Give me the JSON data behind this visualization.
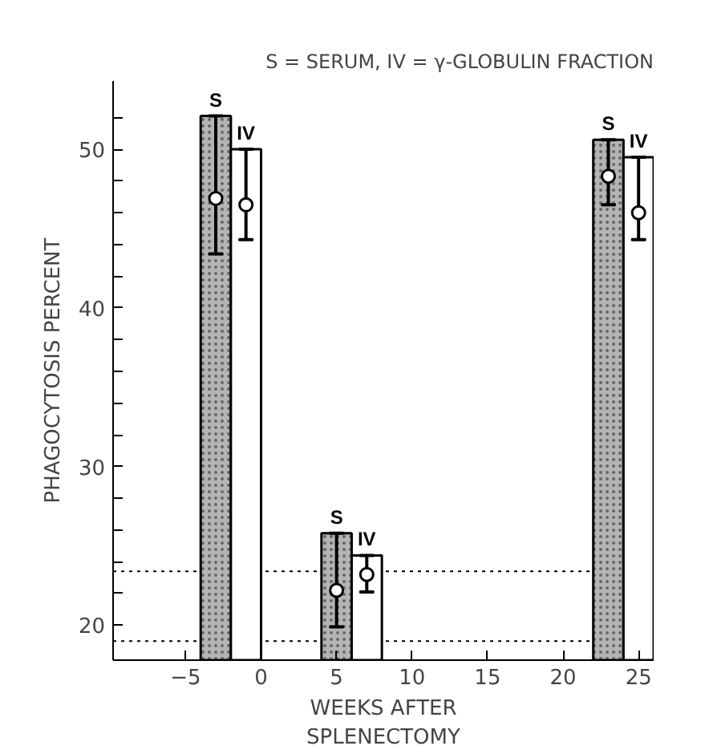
{
  "chart_data": {
    "type": "bar",
    "title": "S = SERUM, IV = γ-GLOBULIN FRACTION",
    "xlabel": "WEEKS AFTER\nSPLENECTOMY",
    "ylabel": "PHAGOCYTOSIS PERCENT",
    "xlim": [
      -9.8,
      26
    ],
    "ylim": [
      17.8,
      54.3
    ],
    "xticks": [
      -5,
      0,
      5,
      10,
      15,
      20,
      25
    ],
    "yticks": [
      20,
      {
        "value": 22,
        "label": null
      },
      {
        "value": 24,
        "label": null
      },
      {
        "value": 26,
        "label": null
      },
      {
        "value": 28,
        "label": null
      },
      30,
      {
        "value": 32,
        "label": null
      },
      {
        "value": 34,
        "label": null
      },
      {
        "value": 36,
        "label": null
      },
      {
        "value": 38,
        "label": null
      },
      40,
      {
        "value": 42,
        "label": null
      },
      {
        "value": 44,
        "label": null
      },
      {
        "value": 46,
        "label": null
      },
      {
        "value": 48,
        "label": null
      },
      50,
      {
        "value": 52,
        "label": null
      }
    ],
    "grid": false,
    "series": [
      {
        "name": "S",
        "color": "#b4b4b4",
        "x": [
          -3,
          5,
          23
        ],
        "values": [
          52.1,
          25.8,
          50.6
        ]
      },
      {
        "name": "IV",
        "color": "#ffffff",
        "x": [
          -1,
          7,
          25
        ],
        "values": [
          50.0,
          24.4,
          49.5
        ]
      },
      {
        "type": "scatter",
        "color": "#000000",
        "marker": "circle",
        "x": [
          -3,
          5,
          23
        ],
        "values": [
          46.9,
          22.2,
          48.3
        ],
        "errors": [
          [
            43.4,
            52.1
          ],
          [
            19.9,
            25.8
          ],
          [
            46.5,
            50.6
          ]
        ]
      },
      {
        "type": "scatter",
        "color": "#000000",
        "marker": "circle",
        "x": [
          -1,
          7,
          25
        ],
        "values": [
          46.5,
          23.2,
          46.0
        ],
        "errors": [
          [
            44.3,
            50.0
          ],
          [
            22.1,
            24.4
          ],
          [
            44.3,
            49.5
          ]
        ]
      }
    ],
    "ref_lines": [
      {
        "axis": "y",
        "value": 23.4,
        "line_style": "dotted"
      },
      {
        "axis": "y",
        "value": 19.0,
        "line_style": "dotted"
      }
    ]
  }
}
